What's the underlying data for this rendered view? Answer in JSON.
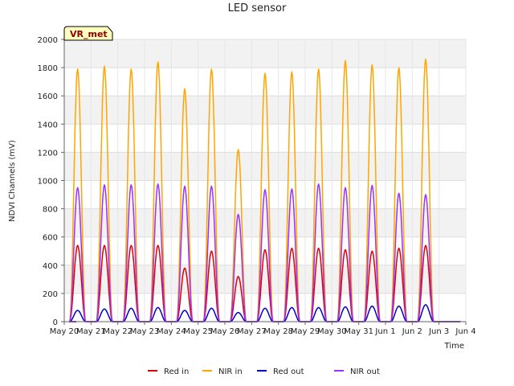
{
  "chart_data": {
    "type": "line",
    "title": "LED sensor",
    "xlabel": "Time",
    "ylabel": "NDVI Channels (mV)",
    "ylim": [
      0,
      2000
    ],
    "yticks": [
      0,
      200,
      400,
      600,
      800,
      1000,
      1200,
      1400,
      1600,
      1800,
      2000
    ],
    "xlim": [
      0,
      15
    ],
    "xticks": [
      {
        "pos": 0,
        "label": "May 20"
      },
      {
        "pos": 1,
        "label": "May 21"
      },
      {
        "pos": 2,
        "label": "May 22"
      },
      {
        "pos": 3,
        "label": "May 23"
      },
      {
        "pos": 4,
        "label": "May 24"
      },
      {
        "pos": 5,
        "label": "May 25"
      },
      {
        "pos": 6,
        "label": "May 26"
      },
      {
        "pos": 7,
        "label": "May 27"
      },
      {
        "pos": 8,
        "label": "May 28"
      },
      {
        "pos": 9,
        "label": "May 29"
      },
      {
        "pos": 10,
        "label": "May 30"
      },
      {
        "pos": 11,
        "label": "May 31"
      },
      {
        "pos": 12,
        "label": "Jun 1"
      },
      {
        "pos": 13,
        "label": "Jun 2"
      },
      {
        "pos": 14,
        "label": "Jun 3"
      },
      {
        "pos": 15,
        "label": "Jun 4"
      }
    ],
    "grid": true,
    "legend_position": "bottom",
    "annotation": "VR_met",
    "day_peaks": {
      "days": [
        "May 20",
        "May 21",
        "May 22",
        "May 23",
        "May 24",
        "May 25",
        "May 26",
        "May 27",
        "May 28",
        "May 29",
        "May 30",
        "May 31",
        "Jun 1",
        "Jun 2",
        "Jun 3"
      ],
      "center_offset": 0.5,
      "half_width": 0.3
    },
    "series": [
      {
        "name": "Red in",
        "color": "#dd0000",
        "daily_peak": [
          540,
          540,
          540,
          540,
          380,
          500,
          320,
          510,
          520,
          520,
          510,
          500,
          520,
          540,
          0
        ]
      },
      {
        "name": "NIR in",
        "color": "#ffa500",
        "daily_peak": [
          1790,
          1810,
          1790,
          1840,
          1650,
          1790,
          1220,
          1760,
          1770,
          1790,
          1850,
          1820,
          1800,
          1860,
          0
        ]
      },
      {
        "name": "Red out",
        "color": "#0000cc",
        "daily_peak": [
          80,
          90,
          95,
          100,
          80,
          95,
          65,
          95,
          100,
          100,
          105,
          110,
          110,
          120,
          0
        ]
      },
      {
        "name": "NIR out",
        "color": "#9b30ff",
        "daily_peak": [
          950,
          970,
          970,
          975,
          960,
          960,
          760,
          935,
          940,
          975,
          950,
          965,
          910,
          900,
          0
        ]
      }
    ]
  }
}
